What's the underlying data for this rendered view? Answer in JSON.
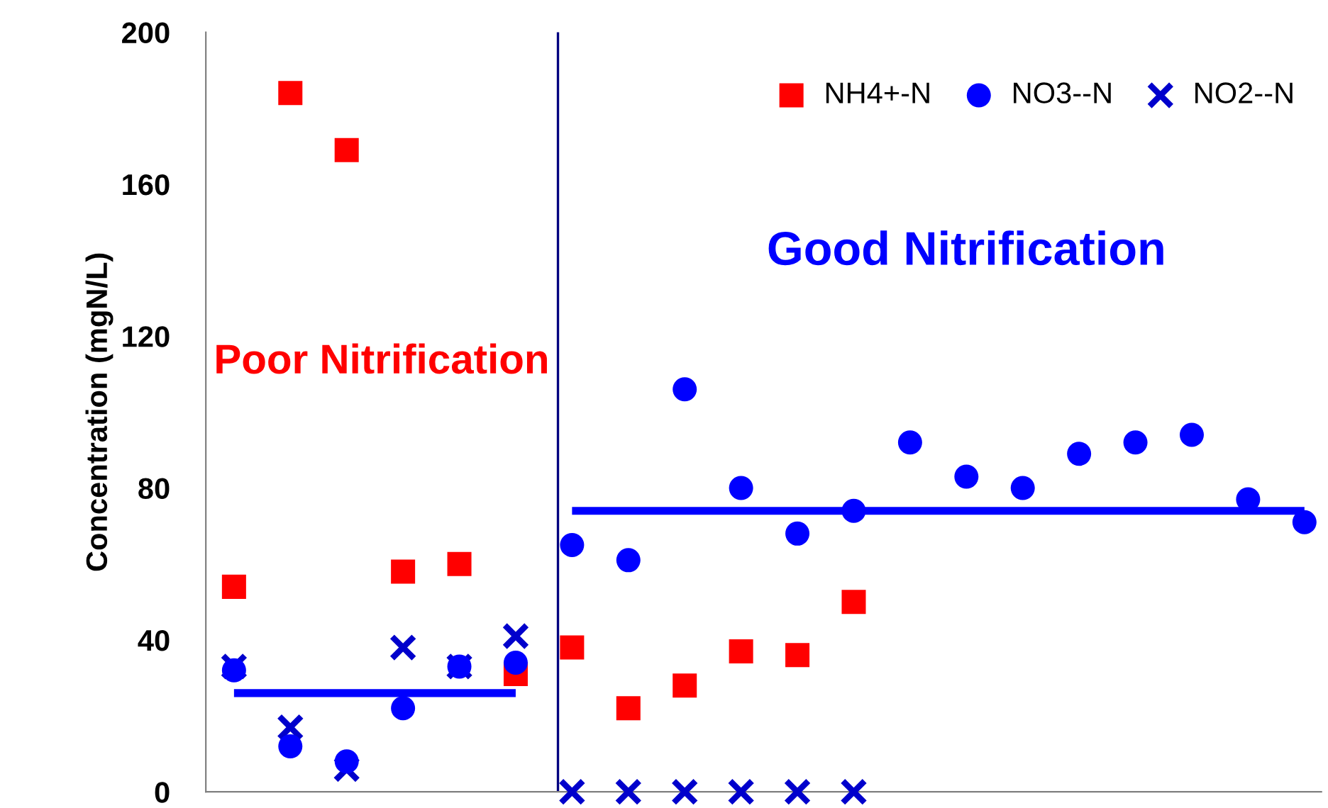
{
  "chart_data": {
    "type": "scatter",
    "ylabel": "Concentration (mgN/L)",
    "categories": [
      null,
      null,
      null,
      null,
      null,
      null,
      null,
      null,
      null,
      null,
      null,
      null,
      null,
      null,
      null,
      null,
      null,
      null,
      null,
      null
    ],
    "ylim": [
      0,
      200
    ],
    "yticks": [
      0,
      40,
      80,
      120,
      160,
      200
    ],
    "tick_labels": "y",
    "grid": false,
    "legend": "top right",
    "series": [
      {
        "name": "NH4+-N",
        "color": "#ff0000",
        "marker": "square",
        "values": [
          54,
          184,
          169,
          58,
          60,
          31,
          38,
          22,
          28,
          37,
          36,
          50,
          null,
          null,
          null,
          null,
          null,
          null,
          null,
          null
        ]
      },
      {
        "name": "NO3--N",
        "color": "#0000ff",
        "marker": "circle",
        "values": [
          32,
          12,
          8,
          22,
          33,
          34,
          65,
          61,
          106,
          80,
          68,
          74,
          92,
          83,
          80,
          89,
          92,
          94,
          77,
          71
        ]
      },
      {
        "name": "NO2--N",
        "color": "#0000cc",
        "marker": "cross",
        "values": [
          33,
          17,
          6,
          38,
          33,
          41,
          0,
          0,
          0,
          0,
          0,
          0,
          null,
          null,
          null,
          null,
          null,
          null,
          null,
          null
        ]
      },
      {
        "type": "line",
        "color": "#0000ff",
        "values": [
          26,
          26,
          26,
          26,
          26,
          26,
          null,
          null,
          null,
          null,
          null,
          null,
          null,
          null,
          null,
          null,
          null,
          null,
          null,
          null
        ]
      },
      {
        "type": "line",
        "color": "#0000ff",
        "values": [
          null,
          null,
          null,
          null,
          null,
          null,
          74,
          74,
          74,
          74,
          74,
          74,
          74,
          74,
          74,
          74,
          74,
          74,
          74,
          74
        ]
      }
    ],
    "annotations": [
      "Poor Nitrification",
      "Good Nitrification"
    ]
  }
}
